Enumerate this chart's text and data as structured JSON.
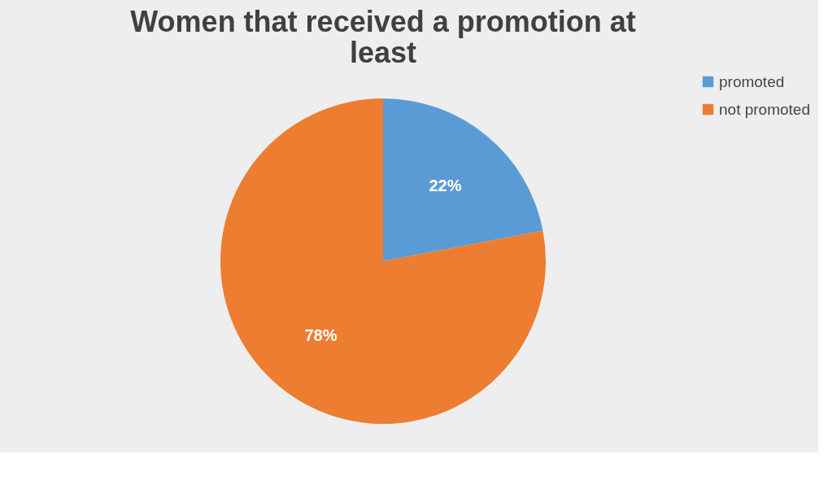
{
  "chart_data": {
    "type": "pie",
    "title": "Women that received a promotion at least",
    "categories": [
      "promoted",
      "not promoted"
    ],
    "values": [
      22,
      78
    ],
    "colors": [
      "#5b9bd5",
      "#ed7d31"
    ],
    "value_labels": [
      "22%",
      "78%"
    ],
    "legend": "right"
  }
}
